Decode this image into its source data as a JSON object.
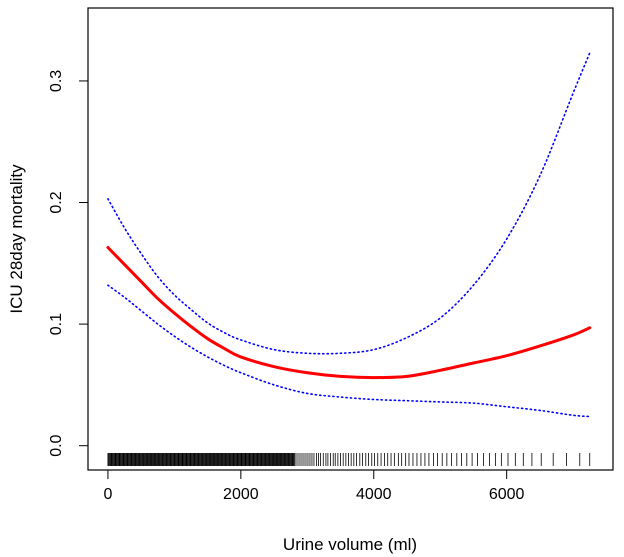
{
  "chart_data": {
    "type": "line",
    "title": "",
    "xlabel": "Urine volume (ml)",
    "ylabel": "ICU 28day mortality",
    "xlim": [
      -300,
      7600
    ],
    "ylim": [
      -0.02,
      0.36
    ],
    "xticks": [
      0,
      2000,
      4000,
      6000
    ],
    "yticks": [
      0.0,
      0.1,
      0.2,
      0.3
    ],
    "xtick_labels": [
      "0",
      "2000",
      "4000",
      "6000"
    ],
    "ytick_labels": [
      "0.0",
      "0.1",
      "0.2",
      "0.3"
    ],
    "grid": false,
    "legend": "none",
    "series": [
      {
        "role": "estimate",
        "color": "#ff0000",
        "style": "solid",
        "x": [
          0,
          250,
          500,
          750,
          1000,
          1250,
          1500,
          1750,
          2000,
          2500,
          3000,
          3500,
          4000,
          4500,
          5000,
          5500,
          6000,
          6500,
          7000,
          7250
        ],
        "y": [
          0.163,
          0.149,
          0.135,
          0.121,
          0.109,
          0.098,
          0.088,
          0.08,
          0.073,
          0.065,
          0.06,
          0.057,
          0.056,
          0.057,
          0.062,
          0.068,
          0.074,
          0.082,
          0.091,
          0.097
        ]
      },
      {
        "role": "upper-ci",
        "color": "#0000ff",
        "style": "dotted",
        "x": [
          0,
          250,
          500,
          750,
          1000,
          1250,
          1500,
          1750,
          2000,
          2500,
          3000,
          3500,
          4000,
          4500,
          5000,
          5500,
          6000,
          6500,
          7000,
          7250
        ],
        "y": [
          0.203,
          0.179,
          0.158,
          0.139,
          0.124,
          0.112,
          0.101,
          0.093,
          0.087,
          0.079,
          0.076,
          0.076,
          0.079,
          0.089,
          0.105,
          0.132,
          0.17,
          0.222,
          0.29,
          0.323
        ]
      },
      {
        "role": "lower-ci",
        "color": "#0000ff",
        "style": "dotted",
        "x": [
          0,
          250,
          500,
          750,
          1000,
          1250,
          1500,
          1750,
          2000,
          2500,
          3000,
          3500,
          4000,
          4500,
          5000,
          5500,
          6000,
          6500,
          7000,
          7250
        ],
        "y": [
          0.132,
          0.122,
          0.111,
          0.1,
          0.09,
          0.081,
          0.073,
          0.066,
          0.06,
          0.05,
          0.043,
          0.04,
          0.038,
          0.037,
          0.036,
          0.035,
          0.032,
          0.029,
          0.025,
          0.024
        ]
      }
    ],
    "rug": {
      "color": "#000000",
      "dense_range": [
        0,
        2800
      ],
      "dense_step": 12,
      "sparse_values": [
        2810,
        2830,
        2860,
        2890,
        2920,
        2950,
        2980,
        3010,
        3040,
        3070,
        3100,
        3140,
        3170,
        3200,
        3240,
        3280,
        3310,
        3350,
        3390,
        3420,
        3460,
        3500,
        3540,
        3580,
        3620,
        3660,
        3700,
        3740,
        3790,
        3830,
        3880,
        3920,
        3970,
        4010,
        4060,
        4110,
        4160,
        4210,
        4260,
        4310,
        4370,
        4420,
        4480,
        4530,
        4590,
        4650,
        4710,
        4770,
        4830,
        4900,
        4960,
        5030,
        5100,
        5170,
        5250,
        5320,
        5400,
        5480,
        5560,
        5650,
        5740,
        5830,
        5920,
        6020,
        6130,
        6250,
        6380,
        6520,
        6700,
        6900,
        7100,
        7250
      ]
    }
  }
}
